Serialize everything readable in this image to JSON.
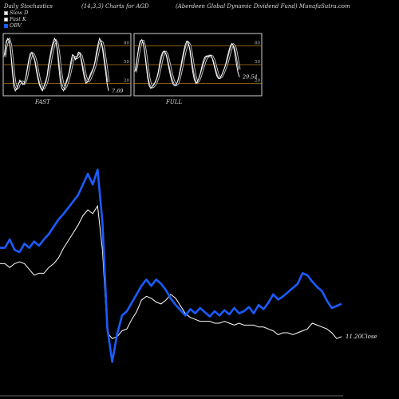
{
  "header": {
    "left": "Daily Stochastics",
    "mid": "(14,3,3) Charts for AGD",
    "right": "(Aberdeen Global Dynamic Dividend Fund) MunafaSutra.com"
  },
  "legend": [
    {
      "label": "Slow D",
      "color": "#ffffff"
    },
    {
      "label": "Fast K",
      "color": "#ffffff"
    },
    {
      "label": "OBV",
      "color": "#1a5cff"
    }
  ],
  "chart_data": [
    {
      "type": "line",
      "title": "FAST",
      "ylim": [
        0,
        100
      ],
      "levels": [
        20,
        50,
        80
      ],
      "tick_labels": [
        "80",
        "50",
        "20"
      ],
      "last_value_label": "7.69",
      "colors": {
        "k": "#ffffff",
        "d": "#cccccc",
        "level": "#b87c14"
      },
      "series": [
        {
          "name": "Fast K",
          "values": [
            65,
            88,
            92,
            88,
            70,
            40,
            15,
            8,
            12,
            18,
            25,
            22,
            18,
            20,
            30,
            45,
            58,
            68,
            70,
            63,
            55,
            40,
            28,
            18,
            12,
            8,
            15,
            22,
            30,
            48,
            62,
            75,
            85,
            92,
            88,
            72,
            45,
            22,
            12,
            8,
            14,
            24,
            30,
            40,
            55,
            66,
            64,
            58,
            62,
            70,
            68,
            55,
            40,
            28,
            20,
            22,
            28,
            35,
            40,
            45,
            55,
            70,
            82,
            92,
            88,
            75,
            58,
            40,
            20,
            8
          ]
        },
        {
          "name": "Slow D",
          "values": [
            62,
            80,
            88,
            90,
            82,
            60,
            35,
            18,
            12,
            14,
            20,
            22,
            22,
            20,
            24,
            34,
            47,
            59,
            66,
            67,
            62,
            53,
            40,
            28,
            18,
            12,
            12,
            16,
            22,
            34,
            48,
            62,
            74,
            84,
            88,
            84,
            68,
            46,
            28,
            16,
            12,
            16,
            23,
            31,
            42,
            54,
            61,
            62,
            61,
            63,
            67,
            64,
            54,
            41,
            30,
            24,
            24,
            28,
            34,
            40,
            47,
            57,
            69,
            81,
            87,
            85,
            74,
            58,
            40,
            22
          ]
        }
      ]
    },
    {
      "type": "line",
      "title": "FULL",
      "ylim": [
        0,
        100
      ],
      "levels": [
        20,
        50,
        80
      ],
      "tick_labels": [
        "80",
        "50",
        "20"
      ],
      "last_value_label": "29.54",
      "colors": {
        "k": "#ffffff",
        "d": "#cccccc",
        "level": "#b87c14"
      },
      "series": [
        {
          "name": "Full K",
          "values": [
            40,
            60,
            78,
            88,
            90,
            85,
            70,
            48,
            28,
            16,
            12,
            14,
            18,
            22,
            28,
            38,
            52,
            64,
            70,
            72,
            68,
            58,
            46,
            34,
            24,
            18,
            16,
            18,
            24,
            34,
            46,
            60,
            72,
            82,
            88,
            86,
            74,
            56,
            38,
            26,
            20,
            22,
            28,
            36,
            46,
            56,
            62,
            64,
            63,
            64,
            65,
            60,
            50,
            40,
            32,
            28,
            28,
            32,
            38,
            44,
            52,
            62,
            72,
            80,
            84,
            80,
            68,
            52,
            38,
            30
          ]
        },
        {
          "name": "Full D",
          "values": [
            38,
            52,
            68,
            80,
            88,
            88,
            80,
            64,
            44,
            28,
            18,
            14,
            15,
            18,
            23,
            30,
            40,
            52,
            63,
            69,
            70,
            66,
            57,
            46,
            35,
            26,
            20,
            18,
            20,
            26,
            36,
            48,
            60,
            72,
            80,
            85,
            82,
            71,
            55,
            40,
            28,
            22,
            24,
            30,
            38,
            46,
            54,
            60,
            63,
            64,
            64,
            63,
            58,
            50,
            41,
            33,
            29,
            30,
            34,
            40,
            46,
            53,
            62,
            71,
            79,
            82,
            80,
            70,
            56,
            42
          ]
        }
      ]
    },
    {
      "type": "line",
      "title": "",
      "x_count": 71,
      "close_label": "11.20Close",
      "colors": {
        "close": "#ffffff",
        "obv": "#1a5cff"
      },
      "series": [
        {
          "name": "Close",
          "values": [
            11.58,
            11.58,
            11.56,
            11.58,
            11.59,
            11.58,
            11.55,
            11.52,
            11.53,
            11.53,
            11.56,
            11.58,
            11.61,
            11.66,
            11.7,
            11.74,
            11.78,
            11.83,
            11.86,
            11.84,
            11.88,
            11.65,
            11.22,
            11.19,
            11.2,
            11.23,
            11.24,
            11.29,
            11.33,
            11.39,
            11.41,
            11.4,
            11.38,
            11.37,
            11.39,
            11.42,
            11.4,
            11.36,
            11.32,
            11.3,
            11.29,
            11.28,
            11.28,
            11.28,
            11.27,
            11.27,
            11.28,
            11.27,
            11.26,
            11.27,
            11.26,
            11.26,
            11.26,
            11.25,
            11.25,
            11.24,
            11.23,
            11.21,
            11.22,
            11.22,
            11.21,
            11.22,
            11.23,
            11.24,
            11.27,
            11.26,
            11.25,
            11.24,
            11.22,
            11.19,
            11.2
          ]
        },
        {
          "name": "OBV",
          "values": [
            -1.8,
            -1.8,
            -1.4,
            -1.9,
            -2.0,
            -1.6,
            -1.8,
            -1.5,
            -1.7,
            -1.4,
            -1.15,
            -0.8,
            -0.45,
            -0.2,
            0.1,
            0.4,
            0.7,
            1.2,
            1.7,
            1.2,
            1.9,
            -0.6,
            -5.6,
            -7.2,
            -5.9,
            -5.0,
            -4.8,
            -4.4,
            -4.0,
            -3.6,
            -3.3,
            -3.6,
            -3.3,
            -3.5,
            -3.8,
            -4.2,
            -4.5,
            -4.75,
            -5.0,
            -4.7,
            -4.9,
            -4.65,
            -4.85,
            -5.05,
            -4.8,
            -5.0,
            -4.75,
            -4.95,
            -4.65,
            -4.9,
            -4.8,
            -4.6,
            -4.9,
            -4.5,
            -4.7,
            -4.4,
            -4.0,
            -4.25,
            -4.1,
            -3.9,
            -3.7,
            -3.5,
            -3.0,
            -3.1,
            -3.4,
            -3.65,
            -3.85,
            -4.3,
            -4.65,
            -4.55,
            -4.45
          ]
        }
      ]
    }
  ]
}
